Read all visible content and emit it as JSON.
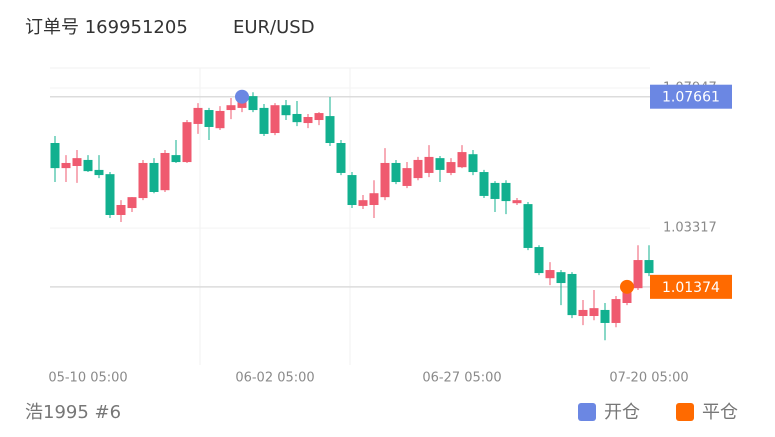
{
  "header": {
    "order": "订单号 169951205",
    "symbol": "EUR/USD"
  },
  "footer": {
    "user": "浩1995 #6"
  },
  "chart_data": {
    "type": "candlestick",
    "categories": [
      null,
      null,
      null,
      "05-10 05:00",
      null,
      null,
      null,
      null,
      null,
      null,
      null,
      null,
      null,
      null,
      null,
      null,
      null,
      null,
      null,
      null,
      "06-02 05:00",
      null,
      null,
      null,
      null,
      null,
      null,
      null,
      null,
      null,
      null,
      null,
      null,
      null,
      null,
      null,
      null,
      "06-27 05:00",
      null,
      null,
      null,
      null,
      null,
      null,
      null,
      null,
      null,
      null,
      null,
      null,
      null,
      null,
      null,
      null,
      "07-20 05:00"
    ],
    "open": [
      1.0613,
      1.053,
      1.0537,
      1.0557,
      1.0524,
      1.051,
      1.0375,
      1.0398,
      1.0431,
      1.0547,
      1.0457,
      1.0573,
      1.055,
      1.0676,
      1.0722,
      1.0662,
      1.0722,
      1.0729,
      1.0768,
      1.0729,
      1.0646,
      1.0738,
      1.0709,
      1.0679,
      1.0689,
      1.0702,
      1.0613,
      1.0507,
      1.0405,
      1.0408,
      1.0434,
      1.0547,
      1.0471,
      1.0497,
      1.0514,
      1.0563,
      1.0514,
      1.0533,
      1.0576,
      1.0517,
      1.0481,
      1.0481,
      1.0414,
      1.0411,
      1.0269,
      1.0166,
      1.0186,
      1.018,
      1.0041,
      1.0041,
      1.0061,
      1.0018,
      1.0084,
      1.0133,
      1.0226
    ],
    "high": [
      1.0636,
      1.0573,
      1.059,
      1.0573,
      1.0573,
      1.0517,
      1.0424,
      1.0434,
      1.0557,
      1.0563,
      1.059,
      1.0623,
      1.0689,
      1.0745,
      1.0729,
      1.0735,
      1.0762,
      1.0778,
      1.0781,
      1.0742,
      1.0745,
      1.0755,
      1.0752,
      1.0709,
      1.0715,
      1.0765,
      1.0623,
      1.0517,
      1.0441,
      1.049,
      1.0596,
      1.0557,
      1.055,
      1.0567,
      1.0606,
      1.057,
      1.0563,
      1.0606,
      1.059,
      1.0524,
      1.0487,
      1.049,
      1.0431,
      1.0418,
      1.0275,
      1.0219,
      1.0193,
      1.0186,
      1.0094,
      1.0127,
      1.0084,
      1.0107,
      1.0153,
      1.0275,
      1.0275
    ],
    "low": [
      1.0484,
      1.0484,
      1.0481,
      1.0517,
      1.0497,
      1.0365,
      1.0352,
      1.0385,
      1.0424,
      1.0447,
      1.0451,
      1.0547,
      1.0547,
      1.0643,
      1.0623,
      1.0656,
      1.0692,
      1.0715,
      1.0715,
      1.0636,
      1.0639,
      1.0689,
      1.0669,
      1.0662,
      1.0672,
      1.0603,
      1.0507,
      1.0398,
      1.0395,
      1.0365,
      1.0424,
      1.0477,
      1.0464,
      1.049,
      1.05,
      1.0484,
      1.0507,
      1.053,
      1.0507,
      1.0431,
      1.0385,
      1.0378,
      1.0408,
      1.0259,
      1.0176,
      1.0143,
      1.0077,
      1.0034,
      1.0011,
      1.0027,
      0.9961,
      1.0004,
      1.0077,
      1.0127,
      1.0173
    ],
    "close": [
      1.053,
      1.0547,
      1.0563,
      1.052,
      1.0507,
      1.0375,
      1.0408,
      1.0434,
      1.0547,
      1.0451,
      1.058,
      1.055,
      1.0682,
      1.0729,
      1.0666,
      1.0719,
      1.0738,
      1.0762,
      1.0722,
      1.0643,
      1.0738,
      1.0705,
      1.0682,
      1.0699,
      1.0712,
      1.0613,
      1.0514,
      1.0408,
      1.0424,
      1.0447,
      1.0547,
      1.0484,
      1.053,
      1.0557,
      1.0567,
      1.0524,
      1.055,
      1.0583,
      1.0517,
      1.0438,
      1.0428,
      1.0421,
      1.0424,
      1.0266,
      1.0183,
      1.0193,
      1.015,
      1.0044,
      1.0061,
      1.0067,
      1.0018,
      1.0097,
      1.0143,
      1.0226,
      1.0183
    ],
    "up_color": "#ef5a6f",
    "down_color": "#12b08f",
    "ylim": [
      0.9879,
      1.0861
    ],
    "yticks": [
      1.07947,
      1.03317
    ],
    "trades": [
      {
        "name": "开仓",
        "color": "#6b87e3",
        "index": 17,
        "value": 1.07661
      },
      {
        "name": "平仓",
        "color": "#ff6a00",
        "index": 52,
        "value": 1.01374
      }
    ]
  }
}
